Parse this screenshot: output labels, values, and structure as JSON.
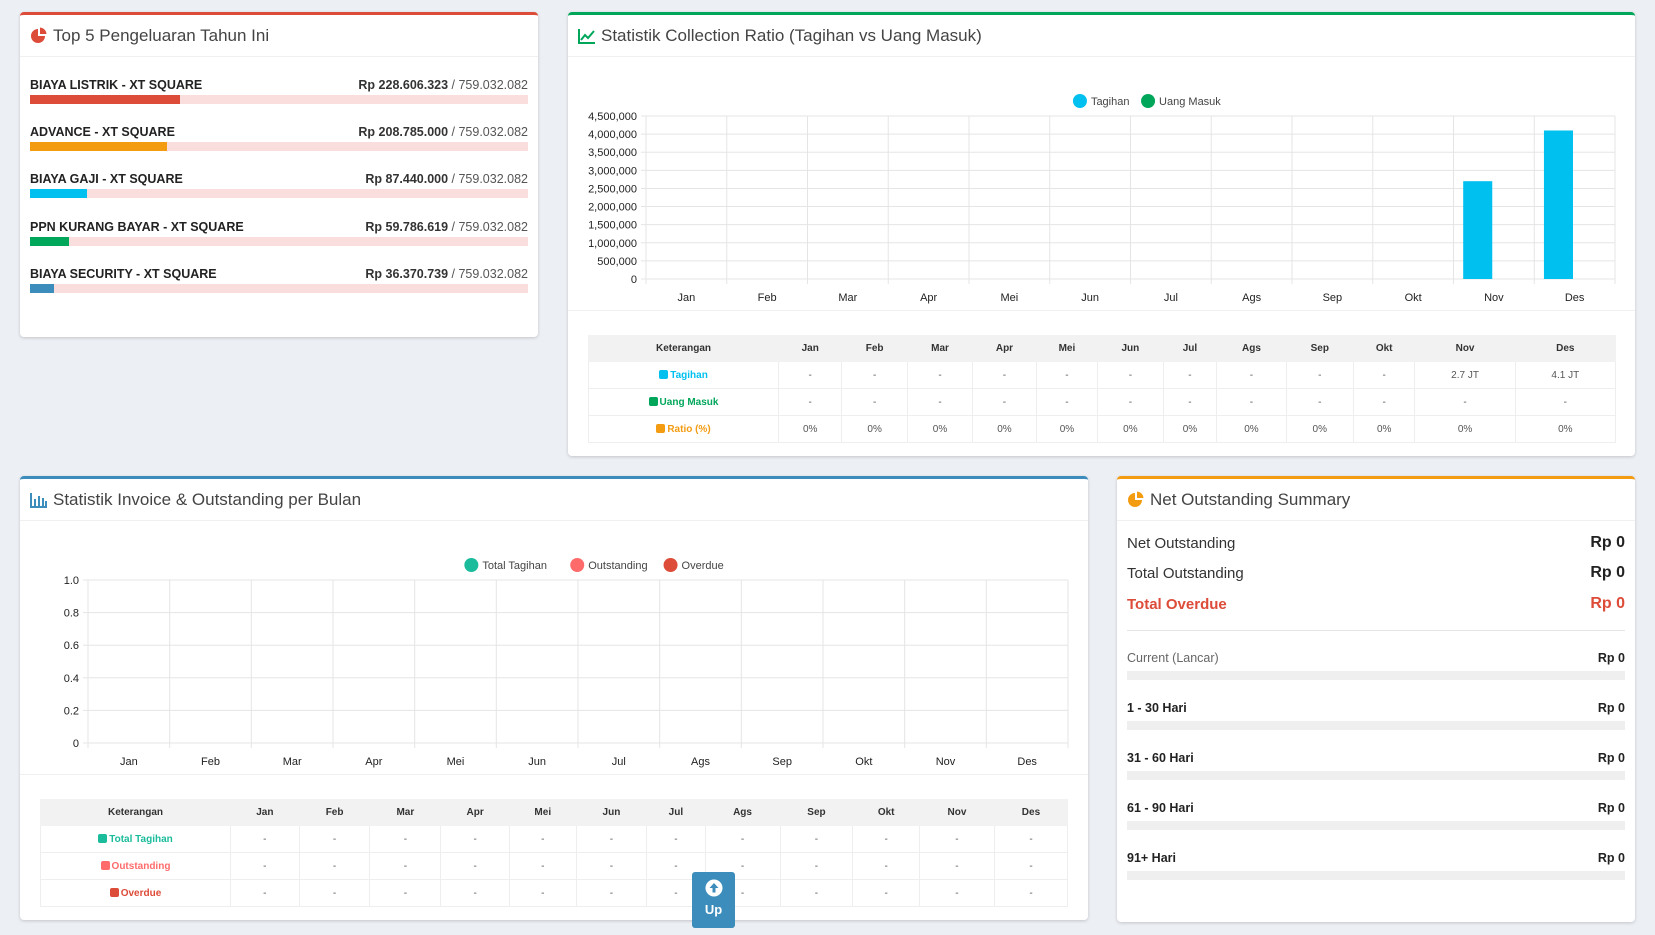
{
  "top5": {
    "title": "Top 5 Pengeluaran Tahun Ini",
    "items": [
      {
        "name": "BIAYA LISTRIK - XT SQUARE",
        "amount": "Rp 228.606.323",
        "total": " / 759.032.082",
        "fraction": 0.301,
        "color": "#dd4b39"
      },
      {
        "name": "ADVANCE - XT SQUARE",
        "amount": "Rp 208.785.000",
        "total": " / 759.032.082",
        "fraction": 0.275,
        "color": "#f39c12"
      },
      {
        "name": "BIAYA GAJI - XT SQUARE",
        "amount": "Rp 87.440.000",
        "total": " / 759.032.082",
        "fraction": 0.115,
        "color": "#00c0ef"
      },
      {
        "name": "PPN KURANG BAYAR - XT SQUARE",
        "amount": "Rp 59.786.619",
        "total": " / 759.032.082",
        "fraction": 0.079,
        "color": "#00a65a"
      },
      {
        "name": "BIAYA SECURITY - XT SQUARE",
        "amount": "Rp 36.370.739",
        "total": " / 759.032.082",
        "fraction": 0.048,
        "color": "#3c8dbc"
      }
    ]
  },
  "collection": {
    "title": "Statistik Collection Ratio (Tagihan vs Uang Masuk)",
    "table": {
      "header": "Keterangan",
      "rows": [
        {
          "label": "Tagihan",
          "color": "#00c0ef",
          "cells": [
            "-",
            "-",
            "-",
            "-",
            "-",
            "-",
            "-",
            "-",
            "-",
            "-",
            "2.7 JT",
            "4.1 JT"
          ]
        },
        {
          "label": "Uang Masuk",
          "color": "#00a65a",
          "cells": [
            "-",
            "-",
            "-",
            "-",
            "-",
            "-",
            "-",
            "-",
            "-",
            "-",
            "-",
            "-"
          ]
        },
        {
          "label": "Ratio (%)",
          "color": "#f39c12",
          "cells": [
            "0%",
            "0%",
            "0%",
            "0%",
            "0%",
            "0%",
            "0%",
            "0%",
            "0%",
            "0%",
            "0%",
            "0%"
          ]
        }
      ]
    }
  },
  "invoice": {
    "title": "Statistik Invoice & Outstanding per Bulan",
    "table": {
      "header": "Keterangan",
      "rows": [
        {
          "label": "Total Tagihan",
          "color": "#1abc9c",
          "cells": [
            "-",
            "-",
            "-",
            "-",
            "-",
            "-",
            "-",
            "-",
            "-",
            "-",
            "-",
            "-"
          ]
        },
        {
          "label": "Outstanding",
          "color": "#ff6b6b",
          "cells": [
            "-",
            "-",
            "-",
            "-",
            "-",
            "-",
            "-",
            "-",
            "-",
            "-",
            "-",
            "-"
          ]
        },
        {
          "label": "Overdue",
          "color": "#dd4b39",
          "cells": [
            "-",
            "-",
            "-",
            "-",
            "-",
            "-",
            "-",
            "-",
            "-",
            "-",
            "-",
            "-"
          ]
        }
      ]
    }
  },
  "chart_data": [
    {
      "type": "bar",
      "title": "Statistik Collection Ratio (Tagihan vs Uang Masuk)",
      "categories": [
        "Jan",
        "Feb",
        "Mar",
        "Apr",
        "Mei",
        "Jun",
        "Jul",
        "Ags",
        "Sep",
        "Okt",
        "Nov",
        "Des"
      ],
      "series": [
        {
          "name": "Tagihan",
          "color": "#00c0ef",
          "values": [
            0,
            0,
            0,
            0,
            0,
            0,
            0,
            0,
            0,
            0,
            2700000,
            4100000
          ]
        },
        {
          "name": "Uang Masuk",
          "color": "#00a65a",
          "values": [
            0,
            0,
            0,
            0,
            0,
            0,
            0,
            0,
            0,
            0,
            0,
            0
          ]
        }
      ],
      "ylim": [
        0,
        4500000
      ],
      "yticks": [
        "4,500,000",
        "4,000,000",
        "3,500,000",
        "3,000,000",
        "2,500,000",
        "2,000,000",
        "1,500,000",
        "1,000,000",
        "500,000",
        "0"
      ],
      "legend": "top-center"
    },
    {
      "type": "bar",
      "title": "Statistik Invoice & Outstanding per Bulan",
      "categories": [
        "Jan",
        "Feb",
        "Mar",
        "Apr",
        "Mei",
        "Jun",
        "Jul",
        "Ags",
        "Sep",
        "Okt",
        "Nov",
        "Des"
      ],
      "series": [
        {
          "name": "Total Tagihan",
          "color": "#1abc9c",
          "values": [
            0,
            0,
            0,
            0,
            0,
            0,
            0,
            0,
            0,
            0,
            0,
            0
          ]
        },
        {
          "name": "Outstanding",
          "color": "#ff6b6b",
          "values": [
            0,
            0,
            0,
            0,
            0,
            0,
            0,
            0,
            0,
            0,
            0,
            0
          ]
        },
        {
          "name": "Overdue",
          "color": "#dd4b39",
          "values": [
            0,
            0,
            0,
            0,
            0,
            0,
            0,
            0,
            0,
            0,
            0,
            0
          ]
        }
      ],
      "ylim": [
        0,
        1.0
      ],
      "yticks": [
        "1.0",
        "0.8",
        "0.6",
        "0.4",
        "0.2",
        "0"
      ],
      "legend": "top-center"
    }
  ],
  "net": {
    "title": "Net Outstanding Summary",
    "net_label": "Net Outstanding",
    "net_value": "Rp 0",
    "total_label": "Total Outstanding",
    "total_value": "Rp 0",
    "overdue_label": "Total Overdue",
    "overdue_value": "Rp 0",
    "aging": [
      {
        "label": "Current (Lancar)",
        "value": "Rp 0"
      },
      {
        "label": "1 - 30 Hari",
        "value": "Rp 0"
      },
      {
        "label": "31 - 60 Hari",
        "value": "Rp 0"
      },
      {
        "label": "61 - 90 Hari",
        "value": "Rp 0"
      },
      {
        "label": "91+ Hari",
        "value": "Rp 0"
      }
    ]
  },
  "up_button": {
    "label": "Up"
  }
}
